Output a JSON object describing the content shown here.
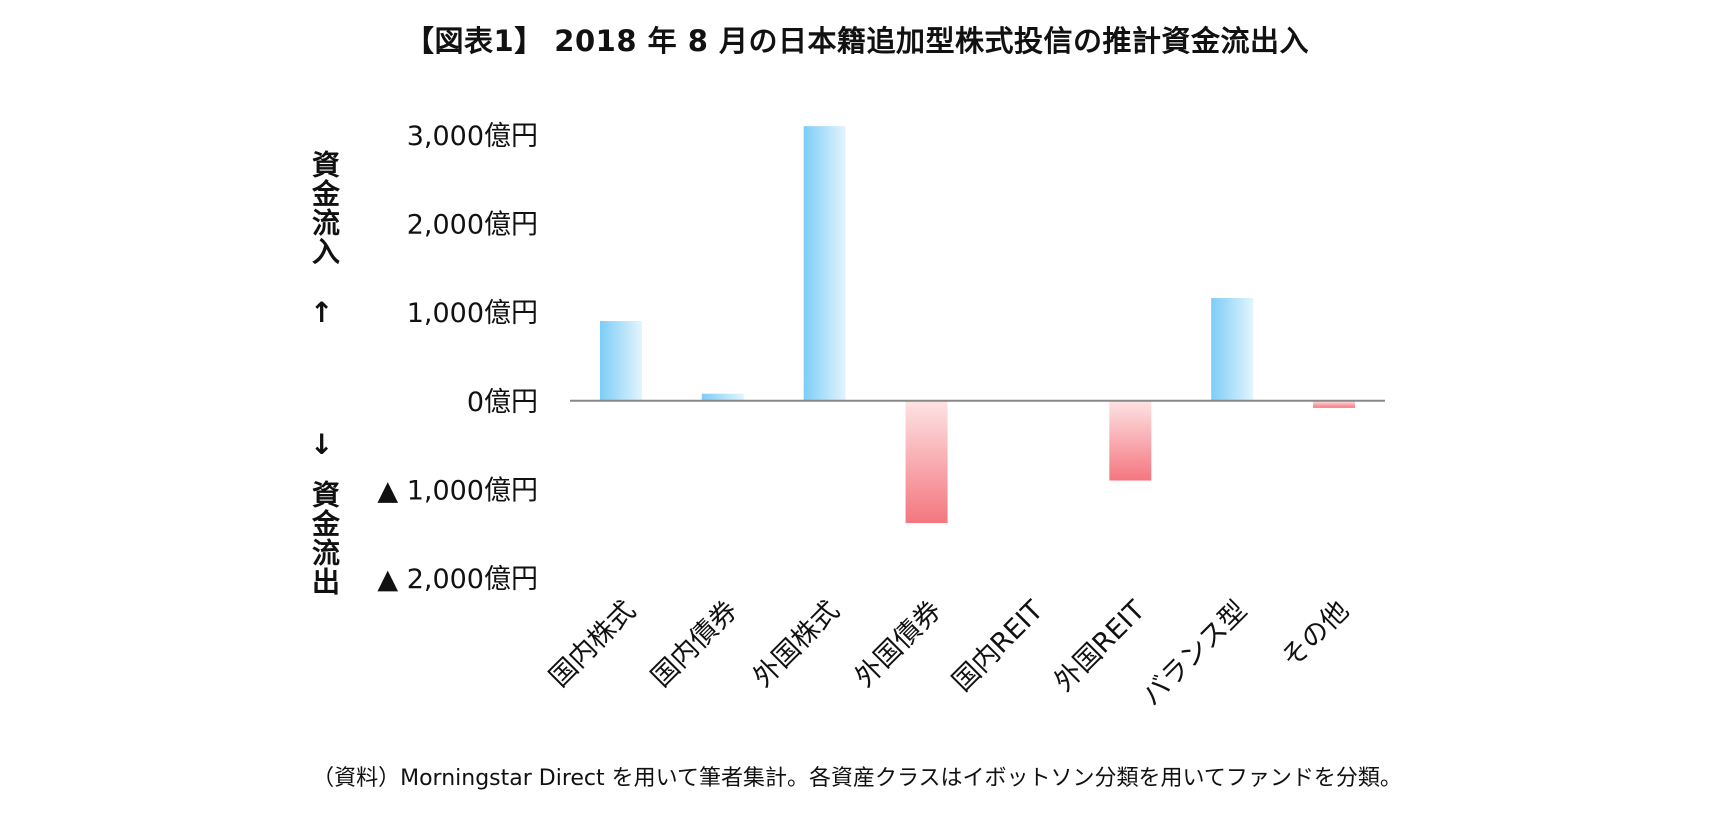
{
  "header": {
    "title": "【図表1】 2018 年 8 月の日本籍追加型株式投信の推計資金流出入"
  },
  "footer": {
    "source": "（資料）Morningstar Direct を用いて筆者集計。各資産クラスはイボットソン分類を用いてファンドを分類。"
  },
  "axis": {
    "inflow_label": "資金流入",
    "outflow_label": "資金流出",
    "up_arrow": "→",
    "down_arrow": "←"
  },
  "chart_data": {
    "type": "bar",
    "title": "【図表1】 2018 年 8 月の日本籍追加型株式投信の推計資金流出入",
    "categories": [
      "国内株式",
      "国内債券",
      "外国株式",
      "外国債券",
      "国内REIT",
      "外国REIT",
      "バランス型",
      "その他"
    ],
    "values": [
      900,
      80,
      3100,
      -1380,
      0,
      -900,
      1160,
      -80
    ],
    "ylim": [
      -2000,
      3000
    ],
    "yticks": [
      {
        "value": 3000,
        "label": "3,000億円"
      },
      {
        "value": 2000,
        "label": "2,000億円"
      },
      {
        "value": 1000,
        "label": "1,000億円"
      },
      {
        "value": 0,
        "label": "0億円"
      },
      {
        "value": -1000,
        "label": "▲ 1,000億円"
      },
      {
        "value": -2000,
        "label": "▲ 2,000億円"
      }
    ],
    "positive_color": "#8fd3f8",
    "negative_color": "#f57f87",
    "grid": false
  }
}
